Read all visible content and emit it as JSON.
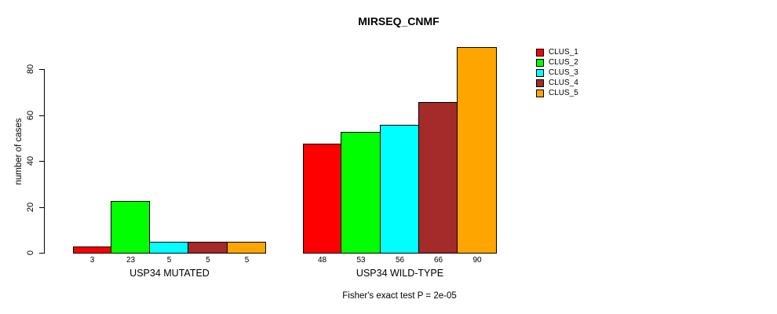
{
  "title": "MIRSEQ_CNMF",
  "chart_data": {
    "type": "bar",
    "title": "MIRSEQ_CNMF",
    "xlabel": "",
    "ylabel": "number of cases",
    "ylim": [
      0,
      90
    ],
    "yticks": [
      0,
      20,
      40,
      60,
      80
    ],
    "grid": false,
    "legend_position": "right",
    "categories": [
      "USP34 MUTATED",
      "USP34 WILD-TYPE"
    ],
    "series": [
      {
        "name": "CLUS_1",
        "color": "#FF0000",
        "values": [
          3,
          48
        ]
      },
      {
        "name": "CLUS_2",
        "color": "#00FF00",
        "values": [
          23,
          53
        ]
      },
      {
        "name": "CLUS_3",
        "color": "#00FFFF",
        "values": [
          5,
          56
        ]
      },
      {
        "name": "CLUS_4",
        "color": "#A52A2A",
        "values": [
          5,
          66
        ]
      },
      {
        "name": "CLUS_5",
        "color": "#FFA500",
        "values": [
          5,
          90
        ]
      }
    ],
    "groups": [
      {
        "label": "USP34 MUTATED",
        "values": [
          3,
          23,
          5,
          5,
          5
        ],
        "value_labels": [
          "3",
          "23",
          "5",
          "5",
          "5"
        ]
      },
      {
        "label": "USP34 WILD-TYPE",
        "values": [
          48,
          53,
          56,
          66,
          90
        ],
        "value_labels": [
          "48",
          "53",
          "56",
          "66",
          "90"
        ]
      }
    ],
    "legend": [
      {
        "label": "CLUS_1",
        "color": "#FF0000"
      },
      {
        "label": "CLUS_2",
        "color": "#00FF00"
      },
      {
        "label": "CLUS_3",
        "color": "#00FFFF"
      },
      {
        "label": "CLUS_4",
        "color": "#A52A2A"
      },
      {
        "label": "CLUS_5",
        "color": "#FFA500"
      }
    ],
    "caption": "Fisher's exact test P = 2e-05",
    "axis_color": "#000000",
    "background_color": "#FFFFFF"
  }
}
